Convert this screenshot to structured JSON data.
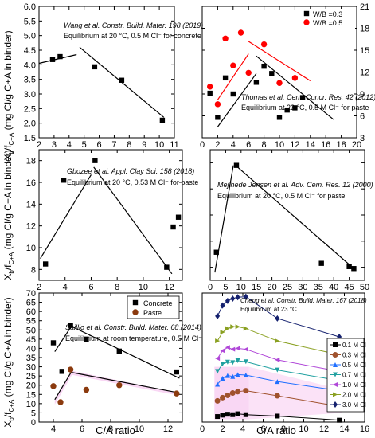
{
  "figure": {
    "ylabel_main": "X",
    "ylabel_sub": "b",
    "ylabel_slash": "/",
    "ylabel_f": "f",
    "ylabel_fsub": "C+A",
    "ylabel_rest": " (mg Cl/g C+A in binder)",
    "xlabel": "C/A ratio"
  },
  "chart_data": [
    {
      "id": "p1",
      "type": "scatter",
      "annotations": [
        "Wang et al. Constr. Build. Mater. 198 (2019)",
        "Equilibrium at 20 °C, 0.5 M Cl⁻ for concrete"
      ],
      "xlim": [
        2,
        11
      ],
      "ylim": [
        1.5,
        6.0
      ],
      "xticks": [
        2,
        3,
        4,
        5,
        6,
        7,
        8,
        9,
        10,
        11
      ],
      "yticks": [
        1.5,
        2.0,
        2.5,
        3.0,
        3.5,
        4.0,
        4.5,
        5.0,
        5.5,
        6.0
      ],
      "ytick_labels": [
        "1.5",
        "2.0",
        "2.5",
        "3.0",
        "3.5",
        "4.0",
        "4.5",
        "5.0",
        "5.5",
        "6.0"
      ],
      "series": [
        {
          "marker": "square",
          "color": "#000000",
          "points": [
            [
              2.9,
              4.18
            ],
            [
              3.4,
              4.28
            ],
            [
              5.7,
              3.93
            ],
            [
              7.5,
              3.47
            ],
            [
              10.2,
              2.1
            ]
          ]
        }
      ],
      "lines": [
        {
          "color": "#000000",
          "from": [
            2.0,
            4.05
          ],
          "to": [
            4.5,
            4.35
          ]
        },
        {
          "color": "#000000",
          "from": [
            4.7,
            4.6
          ],
          "to": [
            10.3,
            2.2
          ]
        }
      ]
    },
    {
      "id": "p2",
      "type": "scatter",
      "annotations": [
        "Thomas et al. Cem. Concr. Res. 42 (2012)",
        "Equilibrium at 23 °C, 0.5 M Cl⁻ for paste"
      ],
      "xlim": [
        0,
        20
      ],
      "ylim": [
        3,
        21
      ],
      "xticks": [
        0,
        2,
        4,
        6,
        8,
        10,
        12,
        14,
        16,
        18,
        20
      ],
      "yticks": [
        3,
        6,
        9,
        12,
        15,
        18,
        21
      ],
      "legend": {
        "position": "top-right"
      },
      "series": [
        {
          "name": "W/B =0.3",
          "marker": "square",
          "color": "#000000",
          "points": [
            [
              1,
              9.1
            ],
            [
              2,
              5.8
            ],
            [
              3,
              11.2
            ],
            [
              4,
              9
            ],
            [
              7,
              10.6
            ],
            [
              8,
              12.8
            ],
            [
              9,
              11.8
            ],
            [
              10,
              5.8
            ],
            [
              11,
              6.8
            ],
            [
              12,
              7.1
            ],
            [
              13,
              8.5
            ]
          ]
        },
        {
          "name": "W/B =0.5",
          "marker": "circle",
          "color": "#ff0000",
          "points": [
            [
              1,
              10
            ],
            [
              2,
              7.6
            ],
            [
              3,
              16.6
            ],
            [
              4,
              12.9
            ],
            [
              5,
              17.4
            ],
            [
              6,
              11.9
            ],
            [
              8,
              15.8
            ],
            [
              10,
              10.5
            ],
            [
              12,
              11.2
            ]
          ]
        }
      ],
      "lines": [
        {
          "color": "#000000",
          "from": [
            2,
            4.5
          ],
          "to": [
            7,
            11.8
          ]
        },
        {
          "color": "#000000",
          "from": [
            7,
            14.2
          ],
          "to": [
            17,
            5.5
          ]
        },
        {
          "color": "#ff0000",
          "from": [
            2,
            8.2
          ],
          "to": [
            6,
            14.5
          ]
        },
        {
          "color": "#ff0000",
          "from": [
            6,
            16.2
          ],
          "to": [
            14,
            10.8
          ]
        }
      ]
    },
    {
      "id": "p3",
      "type": "scatter",
      "annotations": [
        "Gbozee et al. Appl. Clay Sci. 158 (2018)",
        "Equilibrium at 20 °C, 0.53 M Cl⁻ for paste"
      ],
      "xlim": [
        2,
        13
      ],
      "ylim": [
        7,
        19
      ],
      "xticks": [
        2,
        4,
        6,
        8,
        10,
        12
      ],
      "yticks": [
        8,
        10,
        12,
        14,
        16,
        18
      ],
      "series": [
        {
          "marker": "square",
          "color": "#000000",
          "points": [
            [
              2.5,
              8.5
            ],
            [
              3.9,
              16.2
            ],
            [
              6.3,
              18.0
            ],
            [
              11.8,
              8.2
            ],
            [
              12.3,
              11.9
            ],
            [
              12.7,
              12.8
            ]
          ]
        }
      ],
      "lines": [
        {
          "color": "#000000",
          "from": [
            2.1,
            9.0
          ],
          "to": [
            6.0,
            16.7
          ]
        },
        {
          "color": "#000000",
          "from": [
            6.2,
            17.4
          ],
          "to": [
            12.2,
            7.6
          ]
        }
      ]
    },
    {
      "id": "p4",
      "type": "scatter",
      "annotations": [
        "Mejlhede Jensen et al. Adv. Cem. Res. 12 (2000)",
        "Equilibrium at 20 °C, 0.5 M Cl⁻ for paste"
      ],
      "xlim": [
        0,
        50
      ],
      "ylim": [
        5,
        15
      ],
      "xticks": [
        0,
        5,
        10,
        15,
        20,
        25,
        30,
        35,
        40,
        45,
        50
      ],
      "yticks": [
        6,
        8,
        10,
        12,
        14
      ],
      "series": [
        {
          "marker": "square",
          "color": "#000000",
          "points": [
            [
              2,
              7.15
            ],
            [
              8.5,
              13.8
            ],
            [
              36,
              6.3
            ],
            [
              45,
              6.05
            ],
            [
              46.5,
              5.9
            ]
          ]
        }
      ],
      "lines": [
        {
          "color": "#000000",
          "from": [
            1.5,
            5.6
          ],
          "to": [
            7.5,
            13.8
          ]
        },
        {
          "color": "#000000",
          "from": [
            8.7,
            13.7
          ],
          "to": [
            46.5,
            5.9
          ]
        }
      ]
    },
    {
      "id": "p5",
      "type": "scatter",
      "annotations": [
        "Saillio et al. Constr. Build. Mater. 68 (2014)",
        "Equilibrium at room temperature, 0.5 M Cl⁻"
      ],
      "xlim": [
        3,
        13
      ],
      "ylim": [
        0,
        70
      ],
      "xticks": [
        4,
        6,
        8,
        10,
        12
      ],
      "yticks": [
        0,
        5,
        10,
        15,
        20,
        25,
        30,
        35,
        40,
        45,
        50,
        55,
        60,
        65,
        70
      ],
      "legend": {
        "position": "top-left"
      },
      "series": [
        {
          "name": "Concrete",
          "marker": "square",
          "color": "#000000",
          "points": [
            [
              4.0,
              43
            ],
            [
              4.6,
              27.5
            ],
            [
              5.2,
              52.5
            ],
            [
              6.3,
              45
            ],
            [
              8.6,
              38.5
            ],
            [
              12.6,
              27.2
            ]
          ]
        },
        {
          "name": "Paste",
          "marker": "circle",
          "color": "#8b3a0e",
          "points": [
            [
              4.0,
              19.5
            ],
            [
              4.5,
              10.8
            ],
            [
              5.2,
              28.5
            ],
            [
              6.3,
              17.5
            ],
            [
              8.6,
              20
            ],
            [
              12.6,
              15.5
            ]
          ]
        }
      ],
      "lines": [
        {
          "color": "#000000",
          "from": [
            4.1,
            38.2
          ],
          "to": [
            5.3,
            52.5
          ]
        },
        {
          "color": "#000000",
          "from": [
            5.3,
            51.8
          ],
          "to": [
            12.8,
            23.8
          ]
        },
        {
          "color": "#000000",
          "from": [
            4.1,
            12.2
          ],
          "to": [
            5.3,
            27.8
          ]
        },
        {
          "color": "#000000",
          "from": [
            5.3,
            26.9
          ],
          "to": [
            12.8,
            15.8
          ]
        }
      ]
    },
    {
      "id": "p6",
      "type": "scatter",
      "annotations": [
        "Cheng et al. Constr. Build. Mater. 167 (2018)",
        "Equilibrium at 23 °C"
      ],
      "xlim": [
        0,
        16
      ],
      "ylim": [
        5,
        33
      ],
      "xticks": [
        0,
        2,
        4,
        6,
        8,
        10,
        12,
        14,
        16
      ],
      "yticks": [],
      "legend": {
        "position": "right"
      },
      "series": [
        {
          "name": "0.1 M Cl",
          "marker": "square",
          "color": "#000000",
          "points": [
            [
              1.5,
              6.2
            ],
            [
              2.0,
              6.5
            ],
            [
              2.5,
              6.7
            ],
            [
              3.0,
              6.6
            ],
            [
              3.5,
              6.8
            ],
            [
              4.3,
              6.6
            ],
            [
              7.4,
              6.3
            ],
            [
              13.5,
              5.4
            ]
          ]
        },
        {
          "name": "0.3 M Cl",
          "marker": "circle",
          "color": "#a0522d",
          "points": [
            [
              1.5,
              9.6
            ],
            [
              2.0,
              10.3
            ],
            [
              2.5,
              10.8
            ],
            [
              3.0,
              11.3
            ],
            [
              3.5,
              11.6
            ],
            [
              4.3,
              11.8
            ],
            [
              7.4,
              10.7
            ],
            [
              13.5,
              8.4
            ]
          ]
        },
        {
          "name": "0.5 M Cl",
          "marker": "triangle-up",
          "color": "#1f6fff",
          "points": [
            [
              1.5,
              13.2
            ],
            [
              2.0,
              14.5
            ],
            [
              2.5,
              15.1
            ],
            [
              3.0,
              14.9
            ],
            [
              3.5,
              15.3
            ],
            [
              4.3,
              15.2
            ],
            [
              7.4,
              13.8
            ],
            [
              13.5,
              11.8
            ]
          ]
        },
        {
          "name": "0.7 M Cl",
          "marker": "triangle-down",
          "color": "#1fa0a0",
          "points": [
            [
              1.5,
              16.0
            ],
            [
              2.0,
              17.6
            ],
            [
              2.5,
              18.0
            ],
            [
              3.0,
              17.9
            ],
            [
              3.5,
              18.3
            ],
            [
              4.3,
              18.1
            ],
            [
              7.4,
              16.3
            ],
            [
              13.5,
              14.0
            ]
          ]
        },
        {
          "name": "1.0 M Cl",
          "marker": "triangle-left",
          "color": "#b047d8",
          "points": [
            [
              1.5,
              18.8
            ],
            [
              2.0,
              20.5
            ],
            [
              2.5,
              21.2
            ],
            [
              3.0,
              20.8
            ],
            [
              3.5,
              21.0
            ],
            [
              4.3,
              20.8
            ],
            [
              7.4,
              18.5
            ],
            [
              13.5,
              16.0
            ]
          ]
        },
        {
          "name": "2.0 M Cl",
          "marker": "triangle-right",
          "color": "#8aa021",
          "points": [
            [
              1.5,
              22.6
            ],
            [
              2.0,
              24.5
            ],
            [
              2.5,
              25.3
            ],
            [
              3.0,
              25.7
            ],
            [
              3.5,
              25.7
            ],
            [
              4.3,
              25.3
            ],
            [
              7.4,
              22.6
            ],
            [
              13.5,
              19.6
            ]
          ]
        },
        {
          "name": "3.0 M Cl",
          "marker": "diamond",
          "color": "#14206e",
          "points": [
            [
              1.5,
              28.0
            ],
            [
              2.0,
              30.3
            ],
            [
              2.5,
              31.3
            ],
            [
              3.0,
              31.8
            ],
            [
              3.5,
              32.1
            ],
            [
              4.3,
              32.2
            ],
            [
              7.4,
              27.5
            ],
            [
              13.5,
              23.5
            ]
          ]
        }
      ]
    }
  ],
  "colors": {
    "axis": "#000000",
    "highlight": "#f7c6f0"
  }
}
